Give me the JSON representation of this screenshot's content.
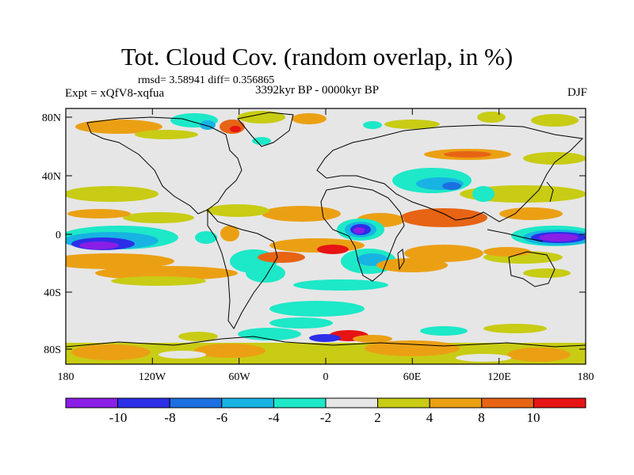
{
  "header": {
    "title": "Tot. Cloud Cov. (random overlap, in %)",
    "stats": "rmsd= 3.58941 diff= 0.356865",
    "experiment": "Expt = xQfV8-xqfua",
    "period": "3392kyr BP - 0000kyr BP",
    "season": "DJF"
  },
  "axes": {
    "lon_ticks": [
      "180",
      "120W",
      "60W",
      "0",
      "60E",
      "120E",
      "180"
    ],
    "lat_ticks": [
      "80N",
      "40N",
      "0",
      "40S",
      "80S"
    ]
  },
  "colorbar": {
    "labels": [
      "-10",
      "-8",
      "-6",
      "-4",
      "-2",
      "2",
      "4",
      "8",
      "10"
    ],
    "colors": [
      "#8a1ee6",
      "#2d2ee8",
      "#1c6fe0",
      "#17b3e3",
      "#1de8c8",
      "#e6e6e6",
      "#c8cc14",
      "#eba014",
      "#e66414",
      "#e61414"
    ]
  },
  "chart_data": {
    "type": "heatmap",
    "title": "Tot. Cloud Cov. (random overlap, in %)",
    "xlim": [
      -180,
      180
    ],
    "ylim": [
      -90,
      90
    ],
    "levels": [
      -10,
      -8,
      -6,
      -4,
      -2,
      2,
      4,
      8,
      10
    ],
    "projection": "cylindrical-equidistant",
    "coastlines": true
  }
}
